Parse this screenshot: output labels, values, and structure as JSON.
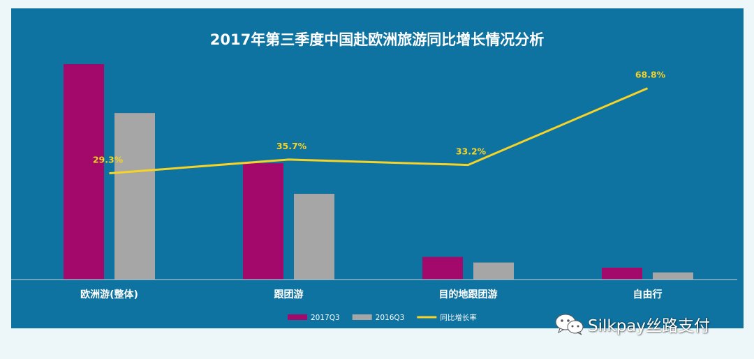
{
  "chart_data": {
    "type": "bar",
    "title": "2017年第三季度中国赴欧洲旅游同比增长情况分析",
    "categories": [
      "欧洲游(整体)",
      "跟团游",
      "目的地跟团游",
      "自由行"
    ],
    "series": [
      {
        "name": "2017Q3",
        "type": "bar",
        "color": "#a3096b",
        "values": [
          100,
          54,
          10.5,
          5.5
        ]
      },
      {
        "name": "2016Q3",
        "type": "bar",
        "color": "#a6a6a6",
        "values": [
          77.3,
          39.8,
          7.9,
          3.3
        ]
      },
      {
        "name": "同比增长率",
        "type": "line",
        "color": "#f5d328",
        "values": [
          29.3,
          35.7,
          33.2,
          68.8
        ],
        "labels": [
          "29.3%",
          "35.7%",
          "33.2%",
          "68.8%"
        ]
      }
    ],
    "legend": "bottom",
    "grid": false,
    "ylim": [
      0,
      100
    ],
    "rate_ylim": [
      -20,
      80
    ]
  },
  "colors": {
    "panel_bg": "#0f73a1",
    "page_bg": "#edf6f8",
    "axis": "#c9d6df"
  },
  "watermark": {
    "icon": "wechat-icon",
    "text": "Silkpay丝路支付"
  }
}
